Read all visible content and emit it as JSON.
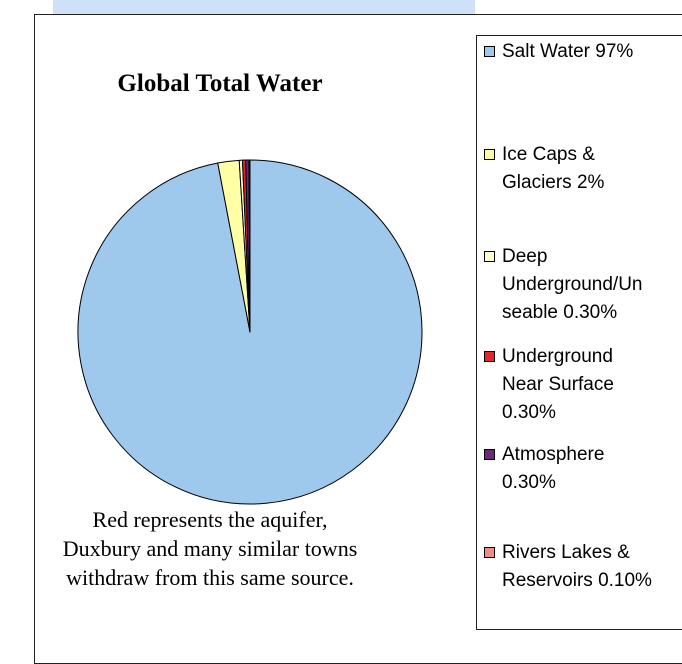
{
  "chart_data": {
    "type": "pie",
    "title": "Global Total Water",
    "caption": "Red represents the aquifer,\nDuxbury and many similar towns\nwithdraw from this same source.",
    "legend_position": "right",
    "slices": [
      {
        "label": "Salt Water 97%",
        "value": 97,
        "color": "#9ec8ec"
      },
      {
        "label": "Ice Caps &\nGlaciers 2%",
        "value": 2,
        "color": "#ffffa6"
      },
      {
        "label": "Deep\nUnderground/Un\nseable 0.30%",
        "value": 0.3,
        "color": "#ffffd0"
      },
      {
        "label": "Underground\nNear Surface\n0.30%",
        "value": 0.3,
        "color": "#e4262c"
      },
      {
        "label": "Atmosphere\n0.30%",
        "value": 0.3,
        "color": "#6a2a78"
      },
      {
        "label": "Rivers Lakes &\nReservoirs 0.10%",
        "value": 0.1,
        "color": "#f08b8b"
      }
    ]
  }
}
